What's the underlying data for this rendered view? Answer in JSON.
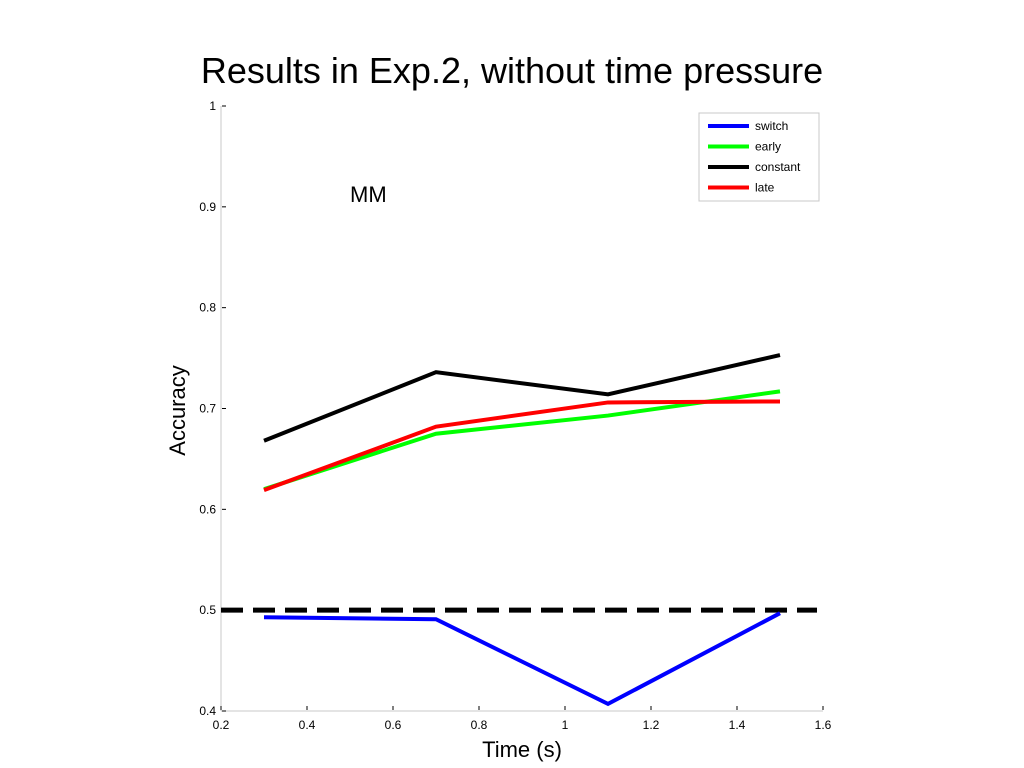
{
  "chart_data": {
    "type": "line",
    "title": "Results in Exp.2, without time pressure",
    "xlabel": "Time (s)",
    "ylabel": "Accuracy",
    "xlim": [
      0.2,
      1.6
    ],
    "ylim": [
      0.4,
      1
    ],
    "x_ticks": [
      "0.2",
      "0.4",
      "0.6",
      "0.8",
      "1",
      "1.2",
      "1.4",
      "1.6"
    ],
    "y_ticks": [
      "0.4",
      "0.5",
      "0.6",
      "0.7",
      "0.8",
      "0.9",
      "1"
    ],
    "x": [
      0.3,
      0.7,
      1.1,
      1.5
    ],
    "series": [
      {
        "name": "switch",
        "color": "#0000ff",
        "values": [
          0.493,
          0.491,
          0.407,
          0.497
        ]
      },
      {
        "name": "early",
        "color": "#00ff00",
        "values": [
          0.62,
          0.675,
          0.693,
          0.717
        ]
      },
      {
        "name": "constant",
        "color": "#000000",
        "values": [
          0.668,
          0.736,
          0.714,
          0.753
        ]
      },
      {
        "name": "late",
        "color": "#ff0000",
        "values": [
          0.619,
          0.682,
          0.706,
          0.707
        ]
      }
    ],
    "reference_line": {
      "y": 0.5,
      "style": "dashed",
      "color": "#000000"
    },
    "annotation": {
      "text": "MM",
      "x": 0.5,
      "y": 0.905
    },
    "legend_position": "top-right",
    "grid": false
  }
}
